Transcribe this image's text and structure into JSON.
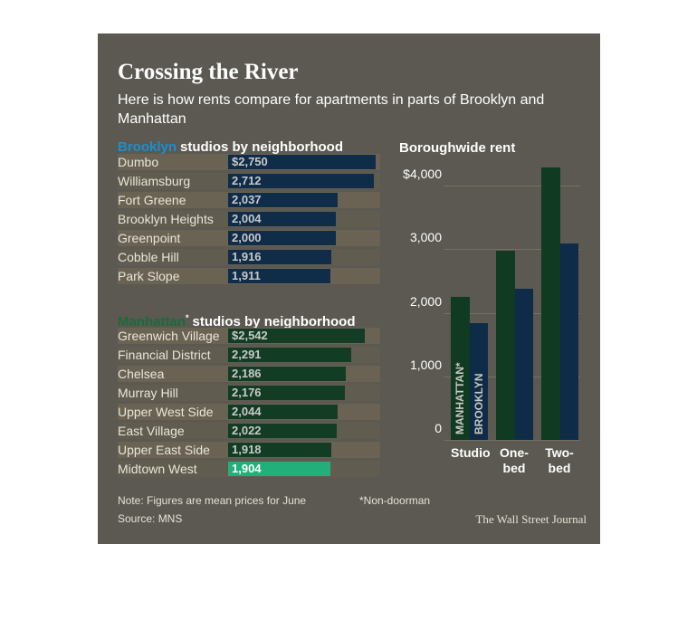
{
  "title": "Crossing the River",
  "subtitle": "Here is how rents compare for apartments in parts of Brooklyn and Manhattan",
  "note": "Note: Figures are mean prices for June",
  "footnote": "*Non-doorman",
  "source": "Source: MNS",
  "credit": "The Wall Street Journal",
  "chart_data": [
    {
      "type": "hbar",
      "title_parts": [
        "Brooklyn",
        "studios by neighborhood"
      ],
      "title_color": "#1a8fd1",
      "categories": [
        "Dumbo",
        "Williamsburg",
        "Fort Greene",
        "Brooklyn Heights",
        "Greenpoint",
        "Cobble Hill",
        "Park Slope"
      ],
      "values": [
        2750,
        2712,
        2037,
        2004,
        2000,
        1916,
        1911
      ],
      "value_labels": [
        "$2,750",
        "2,712",
        "2,037",
        "2,004",
        "2,000",
        "1,916",
        "1,911"
      ],
      "color": "#0f2c48"
    },
    {
      "type": "hbar",
      "title_parts": [
        "Manhattan",
        "*",
        "studios by neighborhood"
      ],
      "title_color": "#1a6b3a",
      "categories": [
        "Greenwich Village",
        "Financial District",
        "Chelsea",
        "Murray Hill",
        "Upper West Side",
        "East Village",
        "Upper East Side",
        "Midtown West"
      ],
      "values": [
        2542,
        2291,
        2186,
        2176,
        2044,
        2022,
        1918,
        1904
      ],
      "value_labels": [
        "$2,542",
        "2,291",
        "2,186",
        "2,176",
        "2,044",
        "2,022",
        "1,918",
        "1,904"
      ],
      "colors": [
        "#123d24",
        "#123d24",
        "#123d24",
        "#123d24",
        "#123d24",
        "#123d24",
        "#123d24",
        "#22b07a"
      ]
    },
    {
      "type": "bar",
      "title": "Boroughwide rent",
      "categories": [
        "Studio",
        "One-bed",
        "Two-bed"
      ],
      "series": [
        {
          "name": "MANHATTAN*",
          "color": "#103a22",
          "values": [
            2250,
            2980,
            4280
          ]
        },
        {
          "name": "BROOKLYN",
          "color": "#0e2b47",
          "values": [
            1830,
            2380,
            3090
          ]
        }
      ],
      "ylim": [
        0,
        4300
      ],
      "yticks": [
        {
          "value": 4000,
          "label": "$4,000"
        },
        {
          "value": 3000,
          "label": "3,000"
        },
        {
          "value": 2000,
          "label": "2,000"
        },
        {
          "value": 1000,
          "label": "1,000"
        },
        0
      ],
      "grid": true
    }
  ]
}
